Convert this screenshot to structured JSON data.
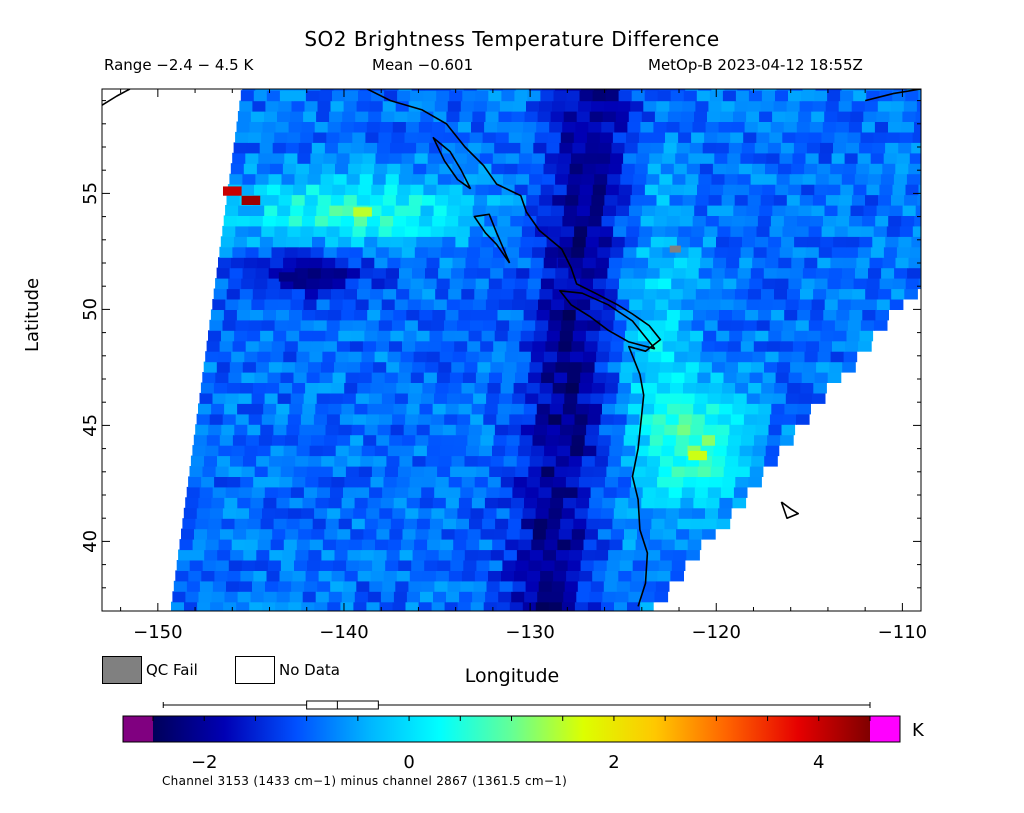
{
  "header": {
    "title": "SO2 Brightness Temperature Difference",
    "range": "Range −2.4 − 4.5 K",
    "mean": "Mean −0.601",
    "satellite_time": "MetOp-B 2023-04-12 18:55Z"
  },
  "axes": {
    "xlabel": "Longitude",
    "ylabel": "Latitude",
    "xticks": [
      {
        "value": -150,
        "label": "−150"
      },
      {
        "value": -140,
        "label": "−140"
      },
      {
        "value": -130,
        "label": "−130"
      },
      {
        "value": -120,
        "label": "−120"
      },
      {
        "value": -110,
        "label": "−110"
      }
    ],
    "yticks": [
      {
        "value": 40,
        "label": "40"
      },
      {
        "value": 45,
        "label": "45"
      },
      {
        "value": 50,
        "label": "50"
      },
      {
        "value": 55,
        "label": "55"
      }
    ],
    "xlim": [
      -153,
      -109
    ],
    "ylim": [
      37,
      59.5
    ]
  },
  "legend": {
    "qc_fail": "QC Fail",
    "no_data": "No Data",
    "qc_fail_color": "#808080",
    "no_data_color": "#ffffff"
  },
  "colorbar": {
    "unit": "K",
    "min": -2.5,
    "max": 4.5,
    "ticks": [
      {
        "value": -2,
        "label": "−2"
      },
      {
        "value": 0,
        "label": "0"
      },
      {
        "value": 2,
        "label": "2"
      },
      {
        "value": 4,
        "label": "4"
      }
    ],
    "under_color": "#800080",
    "over_color": "#ff00ff",
    "stops": [
      "#00005a",
      "#0000b4",
      "#0050ff",
      "#00b4ff",
      "#00ffff",
      "#64ff96",
      "#dcff00",
      "#ffc800",
      "#ff6400",
      "#e60000",
      "#800000"
    ],
    "boxplot": {
      "min": -2.4,
      "q1": -1.0,
      "median": -0.7,
      "q3": -0.3,
      "max": 4.5
    }
  },
  "footnote": "Channel 3153 (1433 cm−1) minus channel 2867 (1361.5 cm−1)",
  "chart_data": {
    "type": "heatmap",
    "title": "SO2 Brightness Temperature Difference",
    "xlabel": "Longitude",
    "ylabel": "Latitude",
    "xlim": [
      -153,
      -109
    ],
    "ylim": [
      37,
      59.5
    ],
    "value_range": [
      -2.4,
      4.5
    ],
    "mean": -0.601,
    "unit": "K",
    "swath_pattern": "mostly blue values (−2 to 0 K), green-yellow bands near 54°N/−139° and 44°N/−121°, small red patch near 55°N/−146°, dark blue trough along −130°",
    "features": [
      {
        "lon": -146,
        "lat": 55.1,
        "value": 4.0
      },
      {
        "lon": -145,
        "lat": 54.7,
        "value": 4.3
      },
      {
        "lon": -139,
        "lat": 54.2,
        "value": 1.5
      },
      {
        "lon": -121,
        "lat": 43.7,
        "value": 1.6
      },
      {
        "lon": -128,
        "lat": 52,
        "value": -2.0
      },
      {
        "lon": -143,
        "lat": 51.4,
        "value": -2.2
      }
    ],
    "qc_fail_points": [
      {
        "lon": -122.2,
        "lat": 52.6
      }
    ]
  },
  "colors": {
    "background": "#ffffff",
    "coastline": "#000000"
  }
}
